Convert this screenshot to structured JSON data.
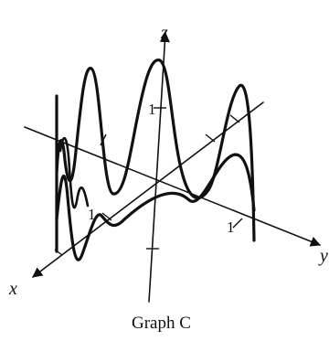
{
  "axes": {
    "x": "x",
    "y": "y",
    "z": "z"
  },
  "tick_labels": {
    "z_one": "1",
    "x_one": "1",
    "y_one": "1"
  },
  "caption": "Graph C"
}
